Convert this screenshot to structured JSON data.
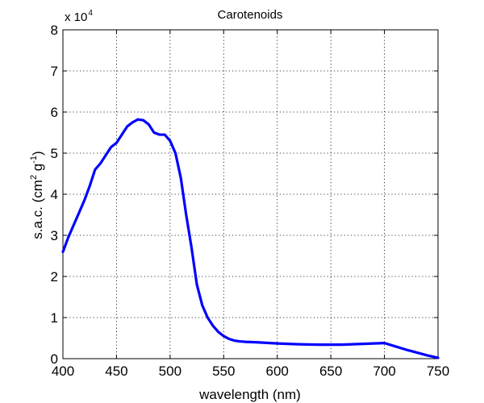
{
  "chart_data": {
    "type": "line",
    "title": "Carotenoids",
    "xlabel": "wavelength (nm)",
    "ylabel_parts": [
      "s.a.c. (cm",
      "2",
      " g",
      "-1",
      ")"
    ],
    "y_multiplier": {
      "prefix": "x 10",
      "exponent": "4"
    },
    "xlim": [
      400,
      750
    ],
    "ylim": [
      0,
      8
    ],
    "grid": true,
    "x_ticks": [
      400,
      450,
      500,
      550,
      600,
      650,
      700,
      750
    ],
    "y_ticks": [
      0,
      1,
      2,
      3,
      4,
      5,
      6,
      7,
      8
    ],
    "series": [
      {
        "color": "#0000ff",
        "x": [
          400,
          405,
          410,
          415,
          420,
          425,
          430,
          435,
          440,
          445,
          450,
          455,
          460,
          465,
          470,
          475,
          480,
          485,
          490,
          495,
          500,
          505,
          510,
          515,
          520,
          525,
          530,
          535,
          540,
          545,
          550,
          555,
          560,
          565,
          570,
          580,
          600,
          620,
          640,
          660,
          680,
          700,
          710,
          720,
          730,
          740,
          750
        ],
        "y": [
          2.6,
          2.95,
          3.25,
          3.55,
          3.85,
          4.2,
          4.6,
          4.75,
          4.95,
          5.15,
          5.25,
          5.45,
          5.65,
          5.75,
          5.82,
          5.8,
          5.7,
          5.5,
          5.45,
          5.45,
          5.3,
          5.0,
          4.4,
          3.5,
          2.7,
          1.8,
          1.3,
          1.0,
          0.8,
          0.65,
          0.55,
          0.48,
          0.44,
          0.42,
          0.41,
          0.4,
          0.37,
          0.35,
          0.34,
          0.34,
          0.36,
          0.38,
          0.3,
          0.22,
          0.15,
          0.08,
          0.02
        ]
      }
    ]
  }
}
